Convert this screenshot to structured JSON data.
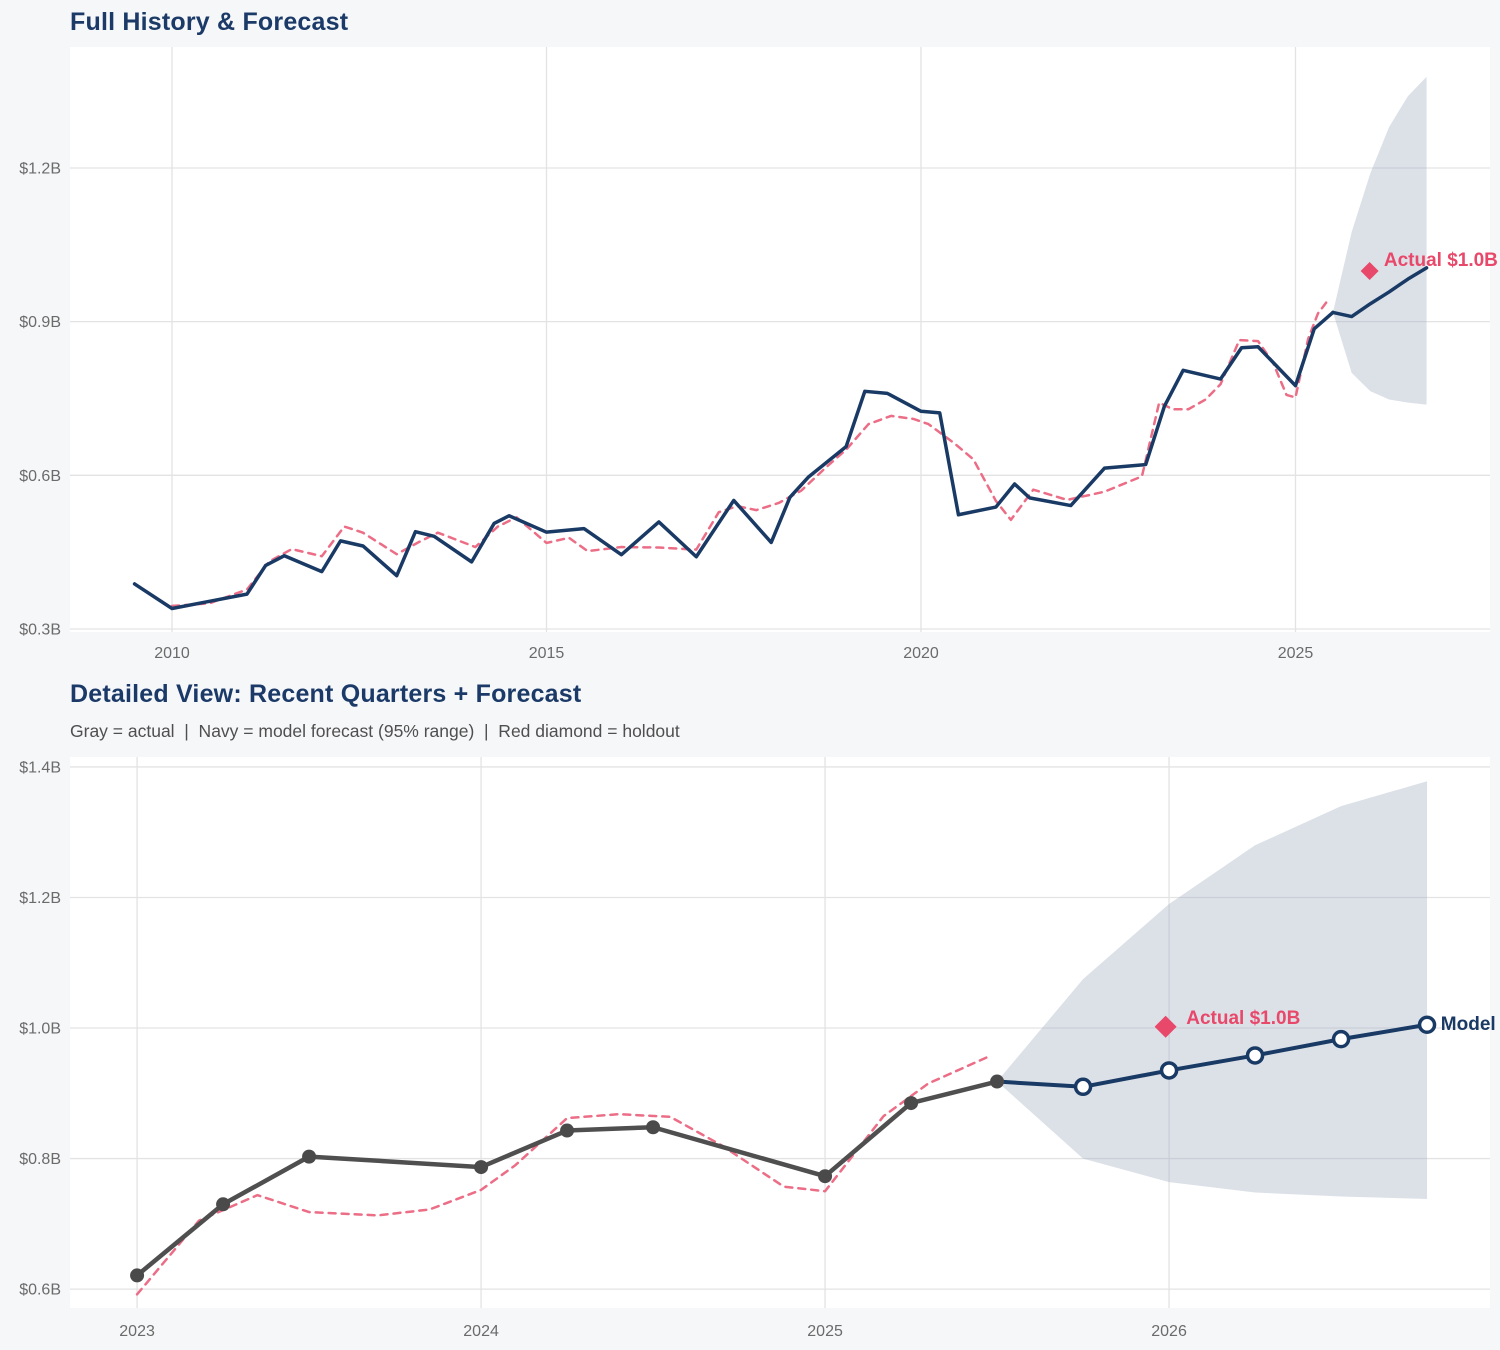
{
  "page": {
    "background": "#f6f7f9",
    "plot_background": "#ffffff",
    "grid_color": "#e3e3e4",
    "tick_label_color": "#6b6b6b",
    "title_color": "#1b3a68",
    "subtitle_color": "#4f4f4f",
    "navy": "#1a3a66",
    "red": "#e8486a",
    "pink": "#ec6d86",
    "gray": "#4f4f4f",
    "band_fill": "rgba(163,176,195,0.38)"
  },
  "chart_data": [
    {
      "id": "full-history",
      "type": "line",
      "title": "Full History & Forecast",
      "x_range": [
        2008.638,
        2027.597
      ],
      "y_range": [
        0.2941,
        1.4362
      ],
      "x_ticks": [
        {
          "v": 2010,
          "label": "2010"
        },
        {
          "v": 2015,
          "label": "2015"
        },
        {
          "v": 2020,
          "label": "2020"
        },
        {
          "v": 2025,
          "label": "2025"
        }
      ],
      "y_ticks": [
        {
          "v": 0.3,
          "label": "$0.3B"
        },
        {
          "v": 0.6,
          "label": "$0.6B"
        },
        {
          "v": 0.9,
          "label": "$0.9B"
        },
        {
          "v": 1.2,
          "label": "$1.2B"
        }
      ],
      "band": {
        "label": "95% forecast range",
        "fill": "rgba(163,176,195,0.38)",
        "x": [
          2025.5,
          2025.75,
          2026.0,
          2026.25,
          2026.5,
          2026.75
        ],
        "top": [
          0.918,
          1.075,
          1.19,
          1.28,
          1.34,
          1.378
        ],
        "bottom": [
          0.918,
          0.8,
          0.764,
          0.748,
          0.742,
          0.738
        ]
      },
      "series": [
        {
          "name": "model-fit-line",
          "color": "#ec6d86",
          "width": 2.5,
          "dash": "7 6",
          "points": [
            [
              2010.0,
              0.345
            ],
            [
              2010.5,
              0.35
            ],
            [
              2011.0,
              0.377
            ],
            [
              2011.3,
              0.432
            ],
            [
              2011.6,
              0.456
            ],
            [
              2012.0,
              0.442
            ],
            [
              2012.3,
              0.5
            ],
            [
              2012.55,
              0.488
            ],
            [
              2013.0,
              0.446
            ],
            [
              2013.3,
              0.47
            ],
            [
              2013.55,
              0.488
            ],
            [
              2013.8,
              0.474
            ],
            [
              2014.05,
              0.46
            ],
            [
              2014.35,
              0.5
            ],
            [
              2014.6,
              0.518
            ],
            [
              2015.0,
              0.468
            ],
            [
              2015.3,
              0.478
            ],
            [
              2015.55,
              0.452
            ],
            [
              2016.0,
              0.46
            ],
            [
              2016.5,
              0.459
            ],
            [
              2017.0,
              0.455
            ],
            [
              2017.3,
              0.528
            ],
            [
              2017.55,
              0.54
            ],
            [
              2017.8,
              0.532
            ],
            [
              2018.1,
              0.546
            ],
            [
              2018.4,
              0.57
            ],
            [
              2018.75,
              0.618
            ],
            [
              2019.0,
              0.65
            ],
            [
              2019.3,
              0.7
            ],
            [
              2019.6,
              0.716
            ],
            [
              2019.9,
              0.71
            ],
            [
              2020.1,
              0.7
            ],
            [
              2020.45,
              0.662
            ],
            [
              2020.7,
              0.631
            ],
            [
              2021.0,
              0.55
            ],
            [
              2021.2,
              0.513
            ],
            [
              2021.5,
              0.572
            ],
            [
              2021.95,
              0.552
            ],
            [
              2022.45,
              0.568
            ],
            [
              2022.95,
              0.598
            ],
            [
              2023.18,
              0.742
            ],
            [
              2023.36,
              0.729
            ],
            [
              2023.57,
              0.729
            ],
            [
              2023.8,
              0.748
            ],
            [
              2024.0,
              0.778
            ],
            [
              2024.25,
              0.864
            ],
            [
              2024.5,
              0.862
            ],
            [
              2024.7,
              0.82
            ],
            [
              2024.88,
              0.757
            ],
            [
              2025.0,
              0.752
            ],
            [
              2025.17,
              0.867
            ],
            [
              2025.3,
              0.916
            ],
            [
              2025.45,
              0.945
            ]
          ]
        },
        {
          "name": "actual-line",
          "color": "#1a3a66",
          "width": 3.5,
          "dash": null,
          "points": [
            [
              2009.5,
              0.388
            ],
            [
              2010.0,
              0.34
            ],
            [
              2010.5,
              0.354
            ],
            [
              2011.0,
              0.368
            ],
            [
              2011.25,
              0.424
            ],
            [
              2011.5,
              0.443
            ],
            [
              2012.0,
              0.412
            ],
            [
              2012.25,
              0.472
            ],
            [
              2012.55,
              0.462
            ],
            [
              2013.0,
              0.404
            ],
            [
              2013.25,
              0.49
            ],
            [
              2013.5,
              0.481
            ],
            [
              2014.0,
              0.431
            ],
            [
              2014.3,
              0.506
            ],
            [
              2014.5,
              0.521
            ],
            [
              2015.0,
              0.489
            ],
            [
              2015.5,
              0.496
            ],
            [
              2016.0,
              0.445
            ],
            [
              2016.5,
              0.509
            ],
            [
              2017.0,
              0.441
            ],
            [
              2017.5,
              0.551
            ],
            [
              2018.0,
              0.469
            ],
            [
              2018.25,
              0.557
            ],
            [
              2018.5,
              0.597
            ],
            [
              2019.0,
              0.656
            ],
            [
              2019.25,
              0.764
            ],
            [
              2019.55,
              0.76
            ],
            [
              2020.0,
              0.725
            ],
            [
              2020.25,
              0.722
            ],
            [
              2020.5,
              0.523
            ],
            [
              2021.0,
              0.538
            ],
            [
              2021.25,
              0.583
            ],
            [
              2021.45,
              0.556
            ],
            [
              2022.0,
              0.541
            ],
            [
              2022.45,
              0.614
            ],
            [
              2023.0,
              0.621
            ],
            [
              2023.25,
              0.735
            ],
            [
              2023.5,
              0.805
            ],
            [
              2024.0,
              0.788
            ],
            [
              2024.28,
              0.849
            ],
            [
              2024.5,
              0.851
            ],
            [
              2025.0,
              0.775
            ],
            [
              2025.25,
              0.886
            ],
            [
              2025.5,
              0.918
            ]
          ]
        },
        {
          "name": "forecast-line",
          "color": "#1a3a66",
          "width": 3.5,
          "dash": null,
          "points": [
            [
              2025.5,
              0.918
            ],
            [
              2025.75,
              0.91
            ],
            [
              2026.0,
              0.935
            ],
            [
              2026.25,
              0.958
            ],
            [
              2026.5,
              0.983
            ],
            [
              2026.75,
              1.005
            ]
          ]
        }
      ],
      "annotations": [
        {
          "name": "holdout-diamond",
          "type": "diamond",
          "x": 2025.99,
          "y": 0.999,
          "size": 9,
          "color": "#e8486a"
        },
        {
          "name": "holdout-label",
          "type": "text",
          "text": "Actual $1.0B",
          "x": 2026.18,
          "y": 1.022,
          "color": "#e8486a",
          "anchor": "start"
        }
      ]
    },
    {
      "id": "detailed-view",
      "type": "line",
      "title": "Detailed View: Recent Quarters + Forecast",
      "subtitle": "Gray = actual  |  Navy = model forecast (95% range)  |  Red diamond = holdout",
      "x_range": [
        2022.805,
        2026.933
      ],
      "y_range": [
        0.5711,
        1.4152
      ],
      "x_ticks": [
        {
          "v": 2023,
          "label": "2023"
        },
        {
          "v": 2024,
          "label": "2024"
        },
        {
          "v": 2025,
          "label": "2025"
        },
        {
          "v": 2026,
          "label": "2026"
        }
      ],
      "y_ticks": [
        {
          "v": 0.6,
          "label": "$0.6B"
        },
        {
          "v": 0.8,
          "label": "$0.8B"
        },
        {
          "v": 1.0,
          "label": "$1.0B"
        },
        {
          "v": 1.2,
          "label": "$1.2B"
        },
        {
          "v": 1.4,
          "label": "$1.4B"
        }
      ],
      "band": {
        "label": "95% forecast range",
        "fill": "rgba(163,176,195,0.38)",
        "x": [
          2025.5,
          2025.75,
          2026.0,
          2026.25,
          2026.5,
          2026.75
        ],
        "top": [
          0.918,
          1.075,
          1.19,
          1.28,
          1.34,
          1.378
        ],
        "bottom": [
          0.918,
          0.8,
          0.764,
          0.748,
          0.742,
          0.738
        ]
      },
      "series": [
        {
          "name": "model-fit-line",
          "color": "#ec6d86",
          "width": 2.5,
          "dash": "7 6",
          "points": [
            [
              2023.0,
              0.592
            ],
            [
              2023.18,
              0.705
            ],
            [
              2023.35,
              0.744
            ],
            [
              2023.5,
              0.718
            ],
            [
              2023.7,
              0.713
            ],
            [
              2023.85,
              0.722
            ],
            [
              2024.0,
              0.752
            ],
            [
              2024.1,
              0.79
            ],
            [
              2024.25,
              0.862
            ],
            [
              2024.4,
              0.868
            ],
            [
              2024.55,
              0.864
            ],
            [
              2024.7,
              0.82
            ],
            [
              2024.88,
              0.757
            ],
            [
              2025.0,
              0.75
            ],
            [
              2025.17,
              0.865
            ],
            [
              2025.3,
              0.915
            ],
            [
              2025.47,
              0.955
            ]
          ]
        },
        {
          "name": "actual-line",
          "color": "#4f4f4f",
          "width": 4.5,
          "dash": null,
          "marker": {
            "shape": "circle",
            "r": 7,
            "fill": "#4a4a4a"
          },
          "points": [
            [
              2023.0,
              0.621
            ],
            [
              2023.25,
              0.73
            ],
            [
              2023.5,
              0.803
            ],
            [
              2024.0,
              0.787
            ],
            [
              2024.25,
              0.843
            ],
            [
              2024.5,
              0.848
            ],
            [
              2025.0,
              0.773
            ],
            [
              2025.25,
              0.885
            ],
            [
              2025.5,
              0.918
            ]
          ]
        },
        {
          "name": "forecast-line",
          "color": "#1a3a66",
          "width": 4,
          "dash": null,
          "marker": {
            "shape": "circle",
            "r": 7.5,
            "fill": "#ffffff",
            "stroke": "#1a3a66",
            "stroke_width": 3.5,
            "skip_first": true
          },
          "points": [
            [
              2025.5,
              0.918
            ],
            [
              2025.75,
              0.91
            ],
            [
              2026.0,
              0.935
            ],
            [
              2026.25,
              0.958
            ],
            [
              2026.5,
              0.983
            ],
            [
              2026.75,
              1.005
            ]
          ]
        }
      ],
      "annotations": [
        {
          "name": "holdout-diamond",
          "type": "diamond",
          "x": 2025.99,
          "y": 1.002,
          "size": 11,
          "color": "#e8486a"
        },
        {
          "name": "holdout-label",
          "type": "text",
          "text": "Actual $1.0B",
          "x": 2026.05,
          "y": 1.016,
          "color": "#e8486a",
          "anchor": "start"
        },
        {
          "name": "model-label",
          "type": "text",
          "text": "Model",
          "x": 2026.79,
          "y": 1.007,
          "color": "#1a3a66",
          "anchor": "start"
        }
      ]
    }
  ]
}
